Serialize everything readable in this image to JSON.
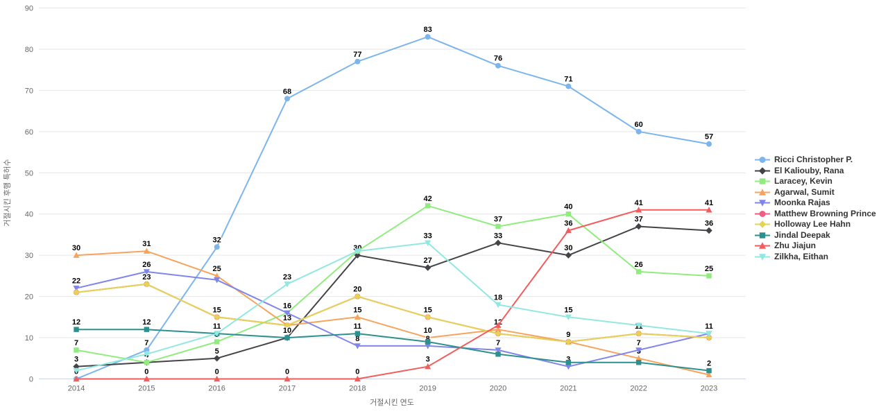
{
  "chart_data": {
    "type": "line",
    "x": [
      "2014",
      "2015",
      "2016",
      "2017",
      "2018",
      "2019",
      "2020",
      "2021",
      "2022",
      "2023"
    ],
    "xlabel": "거절시킨 연도",
    "ylabel": "거절시킨 후행 특허수",
    "ylim": [
      0,
      90
    ],
    "yticks": [
      "0",
      "10",
      "20",
      "30",
      "40",
      "50",
      "60",
      "70",
      "80",
      "90"
    ],
    "grid": "horizontal-only",
    "legend_position": "right-middle",
    "style": {
      "grid_color": "#e6e6e6",
      "axis_line_color": "#ccd6eb",
      "tick_label_color": "#666666",
      "axis_title_color": "#666666",
      "data_label_color": "#000000",
      "legend_text_color": "#333333",
      "background": "#ffffff"
    },
    "series": [
      {
        "name": "Ricci Christopher P.",
        "color": "#7cb5ec",
        "symbol": "circle",
        "values": [
          0,
          7,
          32,
          68,
          77,
          83,
          76,
          71,
          60,
          57
        ],
        "labels": [
          "0",
          "7",
          "32",
          "68",
          "77",
          "83",
          "76",
          "71",
          "60",
          "57"
        ]
      },
      {
        "name": "El Kaliouby, Rana",
        "color": "#434348",
        "symbol": "diamond",
        "values": [
          3,
          4,
          5,
          10,
          30,
          27,
          33,
          30,
          37,
          36
        ],
        "labels": [
          "3",
          "4",
          "5",
          "10",
          "30",
          "27",
          "33",
          "30",
          "37",
          "36"
        ]
      },
      {
        "name": "Laracey, Kevin",
        "color": "#90ed7d",
        "symbol": "square",
        "values": [
          7,
          4,
          9,
          16,
          31,
          42,
          37,
          40,
          26,
          25
        ],
        "labels": [
          "7",
          "4",
          "9",
          "16",
          "",
          "42",
          "37",
          "40",
          "26",
          "25"
        ]
      },
      {
        "name": "Agarwal, Sumit",
        "color": "#f7a35c",
        "symbol": "triangle",
        "values": [
          30,
          31,
          25,
          13,
          15,
          10,
          12,
          9,
          5,
          1
        ],
        "labels": [
          "30",
          "31",
          "25",
          "13",
          "15",
          "10",
          "12",
          "9",
          "5",
          ""
        ]
      },
      {
        "name": "Moonka Rajas",
        "color": "#8085e9",
        "symbol": "triangle-down",
        "values": [
          22,
          26,
          24,
          16,
          8,
          8,
          7,
          3,
          7,
          11
        ],
        "labels": [
          "22",
          "26",
          "",
          "16",
          "8",
          "8",
          "7",
          "3",
          "7",
          "11"
        ]
      },
      {
        "name": "Matthew Browning Prince",
        "color": "#f15c80",
        "symbol": "circle",
        "values": [
          21,
          23,
          15,
          13,
          20,
          15,
          11,
          9,
          11,
          10
        ],
        "labels": [
          "",
          "",
          "",
          "",
          "",
          "",
          "",
          "",
          "",
          ""
        ]
      },
      {
        "name": "Holloway Lee Hahn",
        "color": "#e4d354",
        "symbol": "diamond",
        "values": [
          21,
          23,
          15,
          13,
          20,
          15,
          11,
          9,
          11,
          10
        ],
        "labels": [
          "",
          "23",
          "15",
          "",
          "20",
          "15",
          "",
          "9",
          "11",
          ""
        ]
      },
      {
        "name": "Jindal Deepak",
        "color": "#2b908f",
        "symbol": "square",
        "values": [
          12,
          12,
          11,
          10,
          11,
          9,
          6,
          4,
          4,
          2
        ],
        "labels": [
          "12",
          "12",
          "",
          "10",
          "11",
          "",
          "",
          "",
          "",
          "2"
        ]
      },
      {
        "name": "Zhu Jiajun",
        "color": "#f45b5b",
        "symbol": "triangle",
        "values": [
          0,
          0,
          0,
          0,
          0,
          3,
          13,
          36,
          41,
          41
        ],
        "labels": [
          "0",
          "0",
          "0",
          "0",
          "0",
          "3",
          "",
          "36",
          "41",
          "41"
        ]
      },
      {
        "name": "Zilkha, Eithan",
        "color": "#91e8e1",
        "symbol": "triangle-down",
        "values": [
          2,
          6,
          11,
          23,
          31,
          33,
          18,
          15,
          13,
          11
        ],
        "labels": [
          "",
          "",
          "11",
          "23",
          "",
          "33",
          "18",
          "15",
          "",
          "11"
        ]
      }
    ]
  }
}
